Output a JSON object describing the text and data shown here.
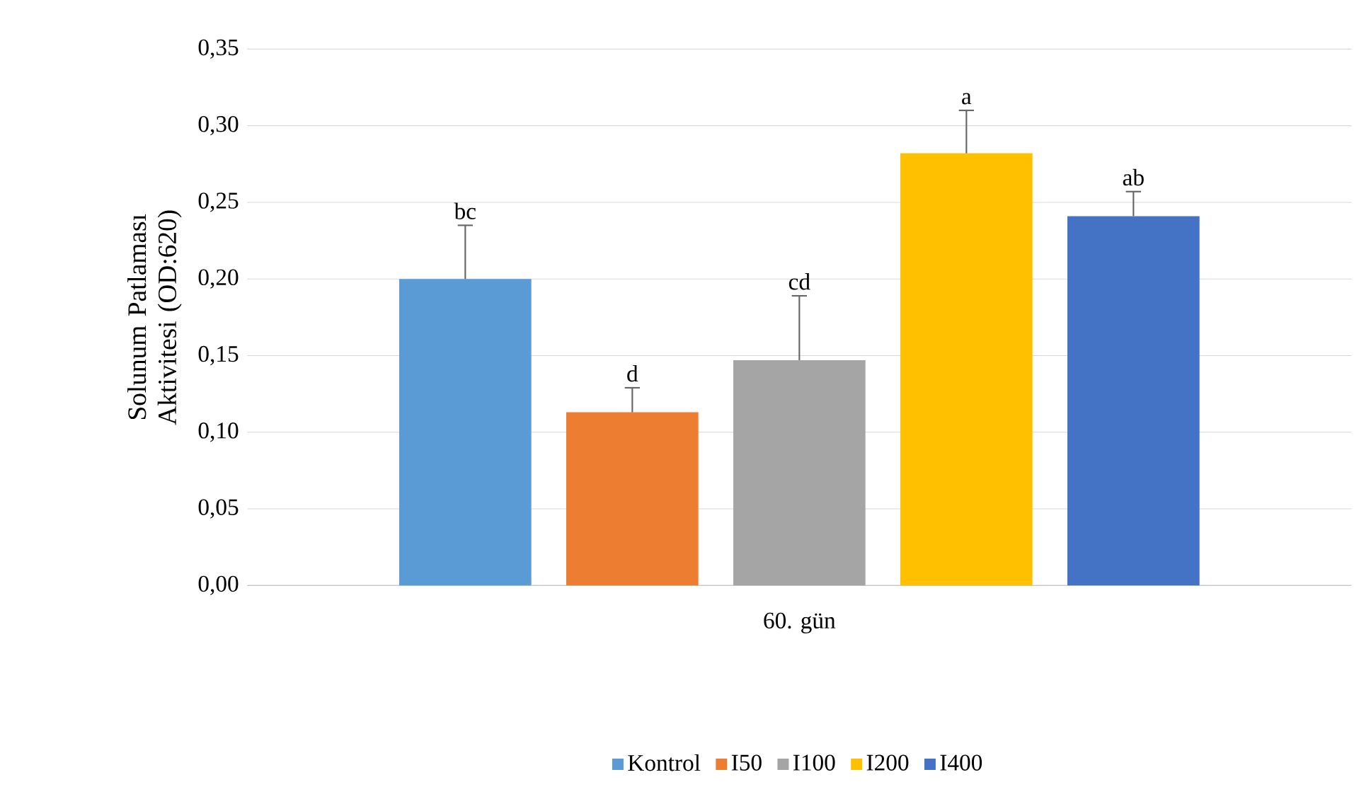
{
  "chart_data": {
    "type": "bar",
    "ylabel": "Solunum Patlaması Aktivitesi (OD:620)",
    "categories": [
      "60. gün"
    ],
    "series": [
      {
        "name": "Kontrol",
        "color": "#5b9bd5",
        "values": [
          0.2
        ],
        "errors": [
          [
            0.2,
            0.235
          ]
        ]
      },
      {
        "name": "I50",
        "color": "#ed7d31",
        "values": [
          0.113
        ],
        "errors": [
          [
            0.113,
            0.129
          ]
        ]
      },
      {
        "name": "I100",
        "color": "#a5a5a5",
        "values": [
          0.147
        ],
        "errors": [
          [
            0.147,
            0.189
          ]
        ]
      },
      {
        "name": "I200",
        "color": "#ffc000",
        "values": [
          0.282
        ],
        "errors": [
          [
            0.282,
            0.31
          ]
        ]
      },
      {
        "name": "I400",
        "color": "#4472c4",
        "values": [
          0.241
        ],
        "errors": [
          [
            0.241,
            0.257
          ]
        ]
      }
    ],
    "ylim": [
      0,
      0.35
    ],
    "yticks": [
      {
        "value": 0,
        "label": "0,00"
      },
      {
        "value": 0.05,
        "label": "0,05"
      },
      {
        "value": 0.1,
        "label": "0,10"
      },
      {
        "value": 0.15,
        "label": "0,15"
      },
      {
        "value": 0.2,
        "label": "0,20"
      },
      {
        "value": 0.25,
        "label": "0,25"
      },
      {
        "value": 0.3,
        "label": "0,30"
      },
      {
        "value": 0.35,
        "label": "0,35"
      }
    ],
    "grid": "y",
    "legend": "bottom",
    "annotations": [
      "bc",
      "d",
      "cd",
      "a",
      "ab"
    ]
  }
}
